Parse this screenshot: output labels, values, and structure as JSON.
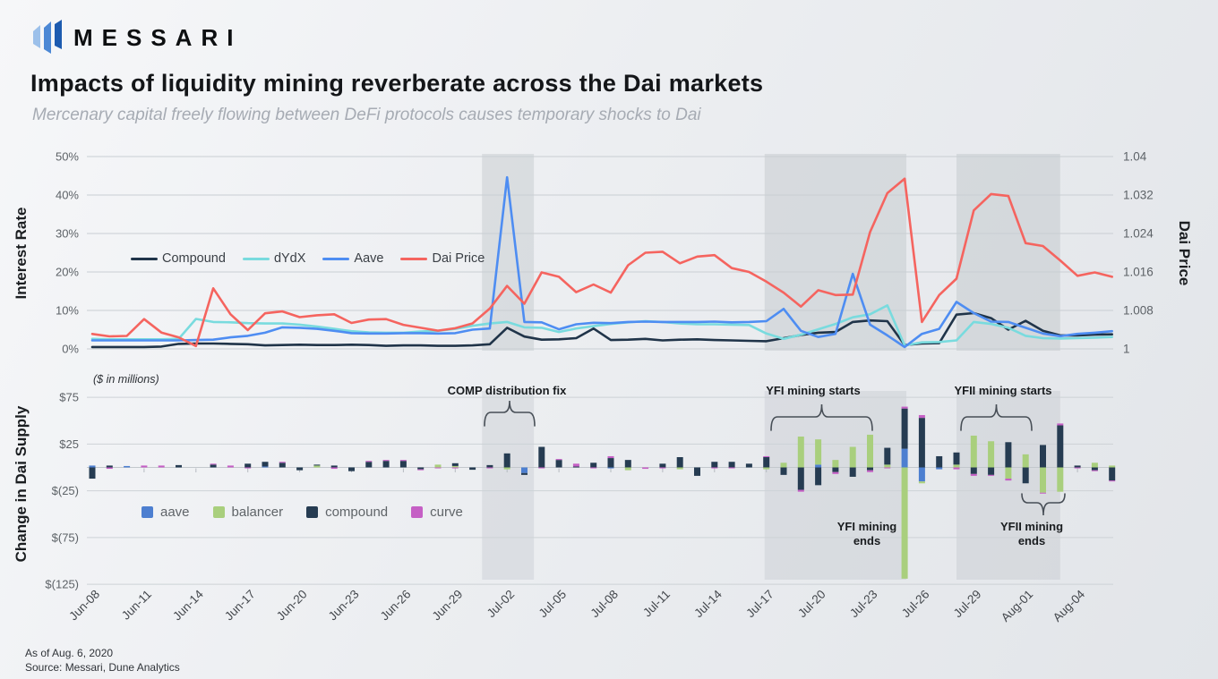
{
  "header": {
    "brand": "MESSARI",
    "title": "Impacts of liquidity mining reverberate across the Dai markets",
    "subtitle": "Mercenary capital freely flowing between DeFi protocols causes temporary shocks to Dai"
  },
  "footer": {
    "as_of": "As of Aug. 6, 2020",
    "source": "Source: Messari, Dune Analytics"
  },
  "annotations": {
    "comp_fix": "COMP distribution fix",
    "yfi_starts": "YFI mining starts",
    "yfii_starts": "YFII mining starts",
    "yfi_ends": "YFI mining ends",
    "yfii_ends": "YFII mining ends"
  },
  "chart_data": [
    {
      "id": "interest-rate-vs-dai-price",
      "type": "line",
      "x": [
        "Jun-08",
        "Jun-09",
        "Jun-10",
        "Jun-11",
        "Jun-12",
        "Jun-13",
        "Jun-14",
        "Jun-15",
        "Jun-16",
        "Jun-17",
        "Jun-18",
        "Jun-19",
        "Jun-20",
        "Jun-21",
        "Jun-22",
        "Jun-23",
        "Jun-24",
        "Jun-25",
        "Jun-26",
        "Jun-27",
        "Jun-28",
        "Jun-29",
        "Jun-30",
        "Jul-01",
        "Jul-02",
        "Jul-03",
        "Jul-04",
        "Jul-05",
        "Jul-06",
        "Jul-07",
        "Jul-08",
        "Jul-09",
        "Jul-10",
        "Jul-11",
        "Jul-12",
        "Jul-13",
        "Jul-14",
        "Jul-15",
        "Jul-16",
        "Jul-17",
        "Jul-18",
        "Jul-19",
        "Jul-20",
        "Jul-21",
        "Jul-22",
        "Jul-23",
        "Jul-24",
        "Jul-25",
        "Jul-26",
        "Jul-27",
        "Jul-28",
        "Jul-29",
        "Jul-30",
        "Jul-31",
        "Aug-01",
        "Aug-02",
        "Aug-03",
        "Aug-04",
        "Aug-05",
        "Aug-06"
      ],
      "x_tick_step": 3,
      "left_axis": {
        "label": "Interest Rate",
        "min": 0,
        "max": 50,
        "tick_values": [
          0,
          10,
          20,
          30,
          40,
          50
        ],
        "tick_labels": [
          "0%",
          "10%",
          "20%",
          "30%",
          "40%",
          "50%"
        ]
      },
      "right_axis": {
        "label": "Dai Price",
        "min": 1,
        "max": 1.04,
        "tick_values": [
          1,
          1.008,
          1.016,
          1.024,
          1.032,
          1.04
        ],
        "tick_labels": [
          "1",
          "1.008",
          "1.016",
          "1.024",
          "1.032",
          "1.04"
        ]
      },
      "series": [
        {
          "name": "Compound",
          "axis": "left",
          "color": "#203449",
          "values": [
            0.5,
            0.5,
            0.5,
            0.5,
            0.6,
            1.3,
            1.4,
            1.4,
            1.3,
            1.2,
            0.9,
            1.0,
            1.1,
            1.0,
            1.0,
            1.1,
            1.0,
            0.8,
            0.9,
            0.9,
            0.8,
            0.8,
            0.9,
            1.2,
            5.5,
            3.2,
            2.4,
            2.5,
            2.8,
            5.3,
            2.3,
            2.4,
            2.6,
            2.2,
            2.4,
            2.5,
            2.3,
            2.2,
            2.1,
            2.0,
            2.8,
            3.6,
            4.2,
            4.4,
            7.0,
            7.4,
            7.2,
            1.0,
            1.4,
            1.5,
            8.9,
            9.3,
            8.0,
            5.0,
            7.3,
            4.7,
            3.5,
            3.5,
            3.7,
            3.8
          ]
        },
        {
          "name": "dYdX",
          "axis": "left",
          "color": "#79dbde",
          "values": [
            2.6,
            2.5,
            2.5,
            2.5,
            2.5,
            2.6,
            7.8,
            7.0,
            6.9,
            6.7,
            6.6,
            6.6,
            6.3,
            5.8,
            5.2,
            4.6,
            4.3,
            4.2,
            4.2,
            4.5,
            4.7,
            5.2,
            6.0,
            6.6,
            7.0,
            5.6,
            5.5,
            4.4,
            5.3,
            5.9,
            6.5,
            6.9,
            7.2,
            7.0,
            6.6,
            6.4,
            6.4,
            6.3,
            6.2,
            4.0,
            2.6,
            3.7,
            5.1,
            6.5,
            8.2,
            9.0,
            11.3,
            0.9,
            1.7,
            1.8,
            2.2,
            7.0,
            6.5,
            5.5,
            3.4,
            2.8,
            2.7,
            2.8,
            2.9,
            3.1
          ]
        },
        {
          "name": "Aave",
          "axis": "left",
          "color": "#4e8df2",
          "values": [
            2.2,
            2.2,
            2.2,
            2.2,
            2.2,
            2.2,
            2.3,
            2.4,
            3.0,
            3.4,
            4.2,
            5.6,
            5.5,
            5.2,
            4.7,
            4.1,
            4.0,
            4.0,
            4.1,
            4.1,
            4.0,
            4.1,
            5.0,
            5.3,
            44.6,
            7.0,
            6.9,
            5.1,
            6.4,
            6.8,
            6.7,
            7.0,
            7.1,
            7.0,
            7.0,
            7.0,
            7.1,
            6.9,
            7.0,
            7.2,
            10.4,
            4.7,
            3.1,
            3.9,
            19.5,
            6.3,
            3.5,
            0.5,
            3.9,
            5.2,
            12.2,
            9.3,
            7.1,
            7.0,
            5.5,
            4.0,
            3.3,
            3.9,
            4.2,
            4.6
          ]
        },
        {
          "name": "Dai Price",
          "axis": "right",
          "color": "#f5645f",
          "values": [
            1.0031,
            1.0026,
            1.0027,
            1.0062,
            1.0034,
            1.0024,
            1.0006,
            1.0126,
            1.0072,
            1.0039,
            1.0074,
            1.0078,
            1.0066,
            1.007,
            1.0072,
            1.0054,
            1.0061,
            1.0062,
            1.005,
            1.0044,
            1.0038,
            1.0043,
            1.0053,
            1.0084,
            1.0131,
            1.0094,
            1.0159,
            1.015,
            1.0118,
            1.0134,
            1.0117,
            1.0174,
            1.02,
            1.0202,
            1.0178,
            1.0192,
            1.0195,
            1.0168,
            1.016,
            1.014,
            1.0117,
            1.0088,
            1.0122,
            1.0112,
            1.0113,
            1.0243,
            1.0324,
            1.0354,
            1.0056,
            1.0112,
            1.0146,
            1.0288,
            1.0322,
            1.0318,
            1.022,
            1.0214,
            1.0184,
            1.0152,
            1.0159,
            1.015
          ]
        }
      ],
      "shaded_regions": [
        {
          "from": "Jun-30",
          "to": "Jul-03",
          "from_day": 22.55,
          "to_day": 25.55
        },
        {
          "from": "Jul-17",
          "to": "Jul-25",
          "from_day": 38.9,
          "to_day": 47.1
        },
        {
          "from": "Jul-28",
          "to": "Aug-03",
          "from_day": 50.0,
          "to_day": 56.0
        }
      ]
    },
    {
      "id": "change-in-dai-supply",
      "type": "stacked-bar",
      "note": "($ in millions)",
      "y_axis": {
        "label": "Change in Dai Supply",
        "unit": "$ millions",
        "tick_values": [
          75,
          25,
          -25,
          -75,
          -125
        ],
        "tick_labels": [
          "$75",
          "$25",
          "$(25)",
          "$(75)",
          "$(125)"
        ]
      },
      "stack_order": [
        "aave",
        "balancer",
        "compound",
        "curve"
      ],
      "series": [
        {
          "name": "aave",
          "color": "#4d7fd0",
          "values": [
            2,
            0,
            1.5,
            0,
            0,
            0,
            0,
            0,
            0,
            0,
            1,
            0,
            0,
            0,
            0,
            0,
            0,
            0,
            0,
            0,
            0,
            0,
            0,
            0,
            0,
            -6,
            0,
            0,
            0,
            0,
            -1,
            0,
            0,
            0,
            0,
            0,
            0,
            0,
            0,
            0,
            0,
            0,
            3,
            0,
            0,
            0,
            0,
            20,
            -15,
            -2,
            0,
            0,
            0,
            0,
            0,
            0,
            0,
            0,
            0,
            0
          ]
        },
        {
          "name": "balancer",
          "color": "#a9cf7d",
          "values": [
            0,
            0,
            0,
            0,
            0,
            0,
            0,
            0,
            0,
            0,
            0,
            0,
            0,
            2,
            0,
            0,
            0,
            0,
            0,
            0,
            3,
            1.5,
            0,
            0,
            -2,
            0,
            0,
            0,
            0,
            0,
            0,
            -3,
            0,
            0,
            -2,
            0,
            0,
            0,
            0,
            -2,
            5,
            33,
            27,
            8,
            22,
            35,
            3,
            -119,
            -2,
            0,
            3,
            34,
            28,
            -12,
            14,
            -27,
            -26,
            0,
            5,
            2
          ]
        },
        {
          "name": "compound",
          "color": "#263c52",
          "values": [
            -12,
            2,
            0,
            0,
            0,
            2.5,
            0,
            3,
            0,
            4,
            5,
            5,
            -3,
            1,
            2,
            -4,
            6,
            7,
            7,
            -2,
            0,
            3,
            -2.5,
            2.5,
            15,
            -2,
            22,
            8,
            1,
            5,
            10,
            8,
            0,
            4,
            11,
            -9,
            6,
            6,
            4,
            11,
            -8,
            -24,
            -19,
            -5,
            -10,
            -3,
            18,
            43,
            53,
            12,
            13,
            -7,
            -8,
            27,
            -17,
            24,
            45,
            2,
            -3,
            -14
          ]
        },
        {
          "name": "curve",
          "color": "#c55fc5",
          "values": [
            0,
            -1.5,
            0,
            2,
            2,
            0,
            0,
            1,
            2,
            -1,
            0,
            1,
            0,
            0,
            -1.5,
            0,
            1,
            1,
            1,
            -1,
            -1,
            -1,
            0,
            -1,
            0,
            0,
            -1,
            1,
            3,
            -1,
            2,
            0,
            -1.5,
            -1,
            0,
            0,
            -1,
            -1,
            0,
            1,
            0,
            -2,
            0,
            -2,
            0,
            -2,
            -1,
            2,
            3,
            0,
            -2,
            -2,
            -1,
            -2,
            0,
            -1,
            2,
            -1,
            -1,
            -1
          ]
        }
      ]
    }
  ]
}
